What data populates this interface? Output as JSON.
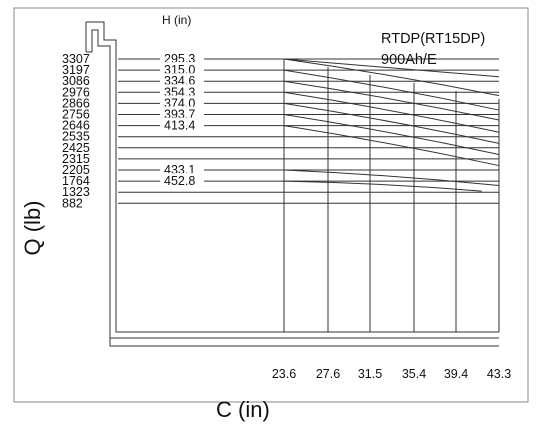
{
  "chart_data": {
    "type": "line",
    "model_label": "RTDP(RT15DP)",
    "spec_label": "900Ah/E",
    "h_axis_label": "H (in)",
    "xlabel": "C (in)",
    "ylabel": "Q (lb)",
    "x_ticks": [
      "23.6",
      "27.6",
      "31.5",
      "35.4",
      "39.4",
      "43.3"
    ],
    "y_ticks": [
      "3307",
      "3197",
      "3086",
      "2976",
      "2866",
      "2756",
      "2646",
      "2535",
      "2425",
      "2315",
      "2205",
      "1764",
      "1323",
      "882"
    ],
    "h_labels": [
      {
        "label": "295.3",
        "row": 0
      },
      {
        "label": "315.0",
        "row": 1
      },
      {
        "label": "334.6",
        "row": 2
      },
      {
        "label": "354.3",
        "row": 3
      },
      {
        "label": "374.0",
        "row": 4
      },
      {
        "label": "393.7",
        "row": 5
      },
      {
        "label": "413.4",
        "row": 6
      },
      {
        "label": "433.1",
        "row": 10
      },
      {
        "label": "452.8",
        "row": 11
      }
    ],
    "curves": [
      {
        "from_row": 0,
        "to_row": 3.3
      },
      {
        "from_row": 1,
        "to_row": 4.6
      },
      {
        "from_row": 2,
        "to_row": 5.5
      },
      {
        "from_row": 3,
        "to_row": 6.6
      },
      {
        "from_row": 4,
        "to_row": 7.6
      },
      {
        "from_row": 5,
        "to_row": 8.6
      },
      {
        "from_row": 6,
        "to_row": 9.6
      },
      {
        "from_row": 10,
        "to_row": 11.4,
        "end_col": 5
      },
      {
        "from_row": 11,
        "to_row": 11.9,
        "end_col": 4.6
      }
    ],
    "envelope_top_row_end": 1.6
  }
}
